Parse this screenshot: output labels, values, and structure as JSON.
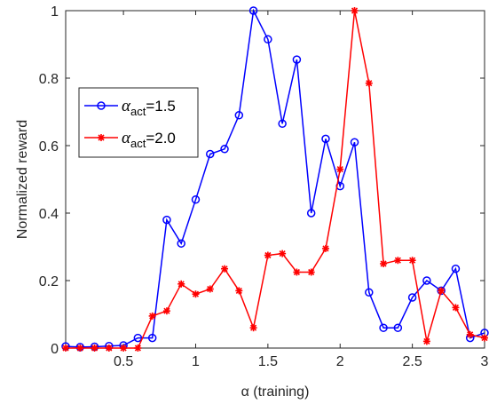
{
  "chart_data": {
    "type": "line",
    "title": "",
    "xlabel": "α (training)",
    "ylabel": "Normalized reward",
    "xlim": [
      0.1,
      3.0
    ],
    "ylim": [
      0,
      1
    ],
    "xticks": [
      0.5,
      1,
      1.5,
      2,
      2.5,
      3
    ],
    "xtick_labels": [
      "0.5",
      "1",
      "1.5",
      "2",
      "2.5",
      "3"
    ],
    "yticks": [
      0,
      0.2,
      0.4,
      0.6,
      0.8,
      1
    ],
    "ytick_labels": [
      "0",
      "0.2",
      "0.4",
      "0.6",
      "0.8",
      "1"
    ],
    "grid": false,
    "legend_position": "upper-left",
    "series": [
      {
        "name": "α_act=1.5",
        "legend_symbol": "α",
        "legend_sub": "act",
        "legend_value": "=1.5",
        "color": "#0000ff",
        "marker": "circle",
        "x": [
          0.1,
          0.2,
          0.3,
          0.4,
          0.5,
          0.6,
          0.7,
          0.8,
          0.9,
          1.0,
          1.1,
          1.2,
          1.3,
          1.4,
          1.5,
          1.6,
          1.7,
          1.8,
          1.9,
          2.0,
          2.1,
          2.2,
          2.3,
          2.4,
          2.5,
          2.6,
          2.7,
          2.8,
          2.9,
          3.0
        ],
        "y": [
          0.005,
          0.003,
          0.004,
          0.006,
          0.008,
          0.03,
          0.03,
          0.38,
          0.31,
          0.44,
          0.575,
          0.59,
          0.69,
          1.0,
          0.915,
          0.665,
          0.855,
          0.4,
          0.62,
          0.48,
          0.61,
          0.165,
          0.06,
          0.06,
          0.15,
          0.2,
          0.17,
          0.235,
          0.03,
          0.045
        ]
      },
      {
        "name": "α_act=2.0",
        "legend_symbol": "α",
        "legend_sub": "act",
        "legend_value": "=2.0",
        "color": "#ff0000",
        "marker": "star",
        "x": [
          0.1,
          0.2,
          0.3,
          0.4,
          0.5,
          0.6,
          0.7,
          0.8,
          0.9,
          1.0,
          1.1,
          1.2,
          1.3,
          1.4,
          1.5,
          1.6,
          1.7,
          1.8,
          1.9,
          2.0,
          2.1,
          2.2,
          2.3,
          2.4,
          2.5,
          2.6,
          2.7,
          2.8,
          2.9,
          3.0
        ],
        "y": [
          0.0,
          0.0,
          0.0,
          0.0,
          0.0,
          0.0,
          0.095,
          0.11,
          0.19,
          0.16,
          0.175,
          0.235,
          0.17,
          0.06,
          0.275,
          0.28,
          0.225,
          0.225,
          0.295,
          0.53,
          1.0,
          0.785,
          0.25,
          0.26,
          0.26,
          0.02,
          0.17,
          0.12,
          0.04,
          0.03
        ]
      }
    ]
  }
}
